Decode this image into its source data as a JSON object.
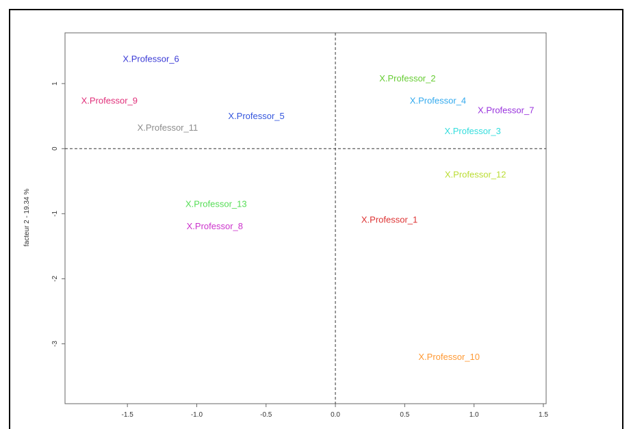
{
  "chart_data": {
    "type": "scatter",
    "title": "",
    "xlabel": "",
    "ylabel": "facteur 2 - 19.34 %",
    "xlim": [
      -1.95,
      1.52
    ],
    "ylim": [
      -3.92,
      1.78
    ],
    "x_ticks": [
      -1.5,
      -1.0,
      -0.5,
      0.0,
      0.5,
      1.0,
      1.5
    ],
    "x_tick_labels": [
      "-1.5",
      "-1.0",
      "-0.5",
      "0.0",
      "0.5",
      "1.0",
      "1.5"
    ],
    "y_ticks": [
      -3,
      -2,
      -1,
      0,
      1
    ],
    "y_tick_labels": [
      "-3",
      "-2",
      "-1",
      "0",
      "1"
    ],
    "reference_lines": {
      "x": 0,
      "y": 0,
      "style": "dashed"
    },
    "grid": false,
    "legend": "none",
    "points": [
      {
        "label": "X.Professor_6",
        "x": -1.33,
        "y": 1.37,
        "color": "#3b3bd6"
      },
      {
        "label": "X.Professor_9",
        "x": -1.63,
        "y": 0.73,
        "color": "#e0307a"
      },
      {
        "label": "X.Professor_11",
        "x": -1.21,
        "y": 0.31,
        "color": "#8c8c8c"
      },
      {
        "label": "X.Professor_5",
        "x": -0.57,
        "y": 0.49,
        "color": "#3355dd"
      },
      {
        "label": "X.Professor_2",
        "x": 0.52,
        "y": 1.07,
        "color": "#66cc33"
      },
      {
        "label": "X.Professor_4",
        "x": 0.74,
        "y": 0.73,
        "color": "#33aaee"
      },
      {
        "label": "X.Professor_7",
        "x": 1.23,
        "y": 0.58,
        "color": "#9933dd"
      },
      {
        "label": "X.Professor_3",
        "x": 0.99,
        "y": 0.26,
        "color": "#33dddd"
      },
      {
        "label": "X.Professor_12",
        "x": 1.01,
        "y": -0.41,
        "color": "#bbdd33"
      },
      {
        "label": "X.Professor_13",
        "x": -0.86,
        "y": -0.86,
        "color": "#55dd55"
      },
      {
        "label": "X.Professor_8",
        "x": -0.87,
        "y": -1.2,
        "color": "#cc33cc"
      },
      {
        "label": "X.Professor_1",
        "x": 0.39,
        "y": -1.1,
        "color": "#dd3333"
      },
      {
        "label": "X.Professor_10",
        "x": 0.82,
        "y": -3.21,
        "color": "#ff9933"
      }
    ]
  }
}
